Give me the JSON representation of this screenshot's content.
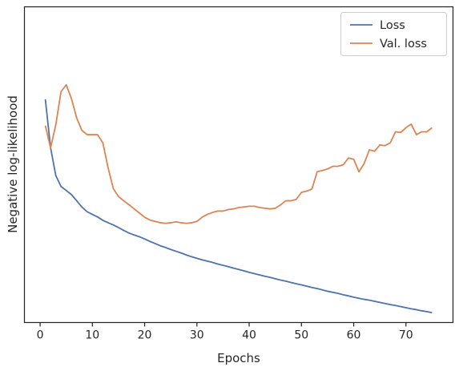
{
  "chart_data": {
    "type": "line",
    "title": "",
    "xlabel": "Epochs",
    "ylabel": "Negative log-likelihood",
    "xlim": [
      -3,
      79
    ],
    "ylim": [
      0,
      100
    ],
    "y_tick_labels_shown": false,
    "x_ticks": [
      0,
      10,
      20,
      30,
      40,
      50,
      60,
      70
    ],
    "x_tick_labels": [
      "0",
      "10",
      "20",
      "30",
      "40",
      "50",
      "60",
      "70"
    ],
    "grid": false,
    "legend_position": "top-right",
    "series": [
      {
        "name": "Loss",
        "color": "#4c72b0",
        "x": [
          1,
          2,
          3,
          4,
          5,
          6,
          7,
          8,
          9,
          10,
          11,
          12,
          13,
          14,
          15,
          16,
          17,
          18,
          19,
          20,
          21,
          22,
          23,
          24,
          25,
          26,
          27,
          28,
          29,
          30,
          31,
          32,
          33,
          34,
          35,
          36,
          37,
          38,
          39,
          40,
          41,
          42,
          43,
          44,
          45,
          46,
          47,
          48,
          49,
          50,
          51,
          52,
          53,
          54,
          55,
          56,
          57,
          58,
          59,
          60,
          61,
          62,
          63,
          64,
          65,
          66,
          67,
          68,
          69,
          70,
          71,
          72,
          73,
          74,
          75
        ],
        "values": [
          96.0,
          74.0,
          61.3,
          56.3,
          54.5,
          52.6,
          49.8,
          46.9,
          44.8,
          43.6,
          42.4,
          40.9,
          39.8,
          38.8,
          37.6,
          36.3,
          35.1,
          34.2,
          33.4,
          32.4,
          31.3,
          30.3,
          29.3,
          28.5,
          27.6,
          26.8,
          26.0,
          25.1,
          24.3,
          23.6,
          22.9,
          22.3,
          21.7,
          21.0,
          20.4,
          19.8,
          19.1,
          18.5,
          17.9,
          17.2,
          16.6,
          16.0,
          15.4,
          14.9,
          14.3,
          13.7,
          13.2,
          12.6,
          12.0,
          11.5,
          10.9,
          10.3,
          9.8,
          9.2,
          8.6,
          8.1,
          7.6,
          7.0,
          6.5,
          5.9,
          5.4,
          4.9,
          4.5,
          4.0,
          3.5,
          3.0,
          2.5,
          2.1,
          1.6,
          1.1,
          0.6,
          0.2,
          -0.3,
          -0.7,
          -1.2
        ]
      },
      {
        "name": "Val. loss",
        "color": "#dd8452",
        "x": [
          1,
          2,
          3,
          4,
          5,
          6,
          7,
          8,
          9,
          10,
          11,
          12,
          13,
          14,
          15,
          16,
          17,
          18,
          19,
          20,
          21,
          22,
          23,
          24,
          25,
          26,
          27,
          28,
          29,
          30,
          31,
          32,
          33,
          34,
          35,
          36,
          37,
          38,
          39,
          40,
          41,
          42,
          43,
          44,
          45,
          46,
          47,
          48,
          49,
          50,
          51,
          52,
          53,
          54,
          55,
          56,
          57,
          58,
          59,
          60,
          61,
          62,
          63,
          64,
          65,
          66,
          67,
          68,
          69,
          70,
          71,
          72,
          73,
          74,
          75
        ],
        "values": [
          84.0,
          73.9,
          84.4,
          99.5,
          102.6,
          96.3,
          87.5,
          81.8,
          79.9,
          79.9,
          79.9,
          76.2,
          64.9,
          55.4,
          51.7,
          49.8,
          48.0,
          46.1,
          44.2,
          42.3,
          41.0,
          40.4,
          39.8,
          39.5,
          39.8,
          40.2,
          39.8,
          39.5,
          39.8,
          40.4,
          42.3,
          43.6,
          44.5,
          45.1,
          45.1,
          45.8,
          46.1,
          46.7,
          47.0,
          47.3,
          47.3,
          46.7,
          46.4,
          46.1,
          46.4,
          47.9,
          49.8,
          49.8,
          50.4,
          53.6,
          54.2,
          55.1,
          63.0,
          63.6,
          64.3,
          65.5,
          65.5,
          66.2,
          69.3,
          68.7,
          63.0,
          66.8,
          73.0,
          72.4,
          75.2,
          74.9,
          76.2,
          81.2,
          80.9,
          83.1,
          84.7,
          79.9,
          81.2,
          81.2,
          83.1
        ]
      }
    ]
  }
}
